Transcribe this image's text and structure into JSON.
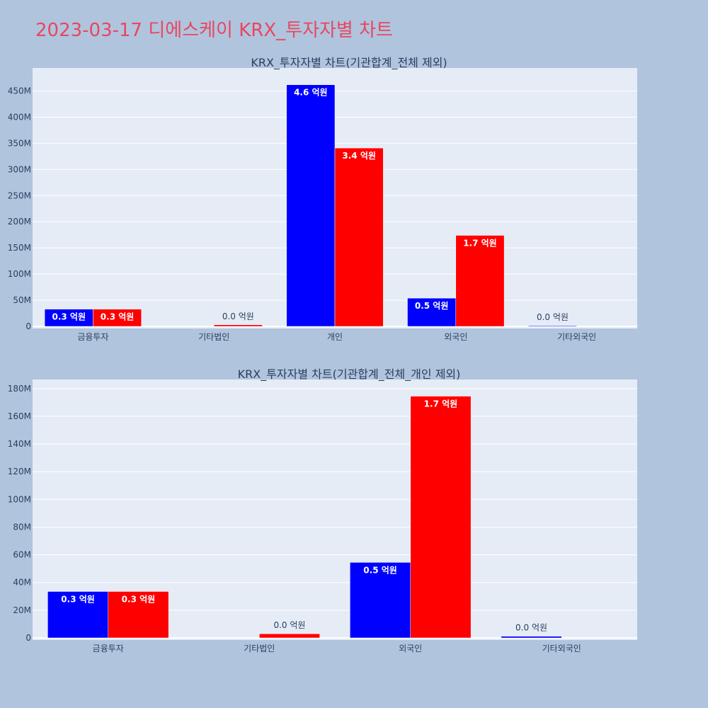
{
  "page": {
    "title": "2023-03-17 디에스케이 KRX_투자자별 차트"
  },
  "colors": {
    "background": "#b0c4de",
    "plot_bg": "#e5ecf6",
    "title": "#e8475f",
    "series_a": "#0000ff",
    "series_b": "#ff0000"
  },
  "chart_data": [
    {
      "type": "bar",
      "title": "KRX_투자자별 차트(기관합계_전체 제외)",
      "categories": [
        "금융투자",
        "기타법인",
        "개인",
        "외국인",
        "기타외국인"
      ],
      "ylim": [
        0,
        490000000
      ],
      "yticks": [
        0,
        50000000,
        100000000,
        150000000,
        200000000,
        250000000,
        300000000,
        350000000,
        400000000,
        450000000
      ],
      "ytick_labels": [
        "0",
        "50M",
        "100M",
        "150M",
        "200M",
        "250M",
        "300M",
        "350M",
        "400M",
        "450M"
      ],
      "grid": true,
      "series": [
        {
          "color": "#0000ff",
          "values": [
            33000000,
            0,
            462000000,
            54000000,
            1200000
          ],
          "labels": [
            "0.3 억원",
            "",
            "4.6 억원",
            "0.5 억원",
            "0.0 억원"
          ]
        },
        {
          "color": "#ff0000",
          "values": [
            33000000,
            3000000,
            341000000,
            174000000,
            0
          ],
          "labels": [
            "0.3 억원",
            "0.0 억원",
            "3.4 억원",
            "1.7 억원",
            ""
          ]
        }
      ]
    },
    {
      "type": "bar",
      "title": "KRX_투자자별 차트(기관합계_전체_개인 제외)",
      "categories": [
        "금융투자",
        "기타법인",
        "외국인",
        "기타외국인"
      ],
      "ylim": [
        0,
        185000000
      ],
      "yticks": [
        0,
        20000000,
        40000000,
        60000000,
        80000000,
        100000000,
        120000000,
        140000000,
        160000000,
        180000000
      ],
      "ytick_labels": [
        "0",
        "20M",
        "40M",
        "60M",
        "80M",
        "100M",
        "120M",
        "140M",
        "160M",
        "180M"
      ],
      "grid": true,
      "series": [
        {
          "color": "#0000ff",
          "values": [
            33500000,
            0,
            54500000,
            1200000
          ],
          "labels": [
            "0.3 억원",
            "",
            "0.5 억원",
            "0.0 억원"
          ]
        },
        {
          "color": "#ff0000",
          "values": [
            33500000,
            3000000,
            174500000,
            0
          ],
          "labels": [
            "0.3 억원",
            "0.0 억원",
            "1.7 억원",
            ""
          ]
        }
      ]
    }
  ]
}
